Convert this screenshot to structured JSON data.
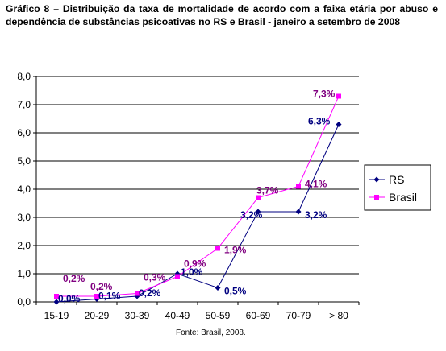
{
  "caption": "Gráfico 8 – Distribuição da taxa de mortalidade de acordo com a faixa etária por abuso e dependência de substâncias psicoativas no RS e Brasil - janeiro a setembro de 2008",
  "source": "Fonte: Brasil, 2008.",
  "chart_data": {
    "type": "line",
    "categories": [
      "15-19",
      "20-29",
      "30-39",
      "40-49",
      "50-59",
      "60-69",
      "70-79",
      "> 80"
    ],
    "ylim": [
      0,
      8
    ],
    "yticks": [
      "0,0",
      "1,0",
      "2,0",
      "3,0",
      "4,0",
      "5,0",
      "6,0",
      "7,0",
      "8,0"
    ],
    "grid": "horizontal",
    "legend_position": "right",
    "series": [
      {
        "name": "RS",
        "color": "#000080",
        "marker": "diamond",
        "values": [
          0.0,
          0.1,
          0.2,
          1.0,
          0.5,
          3.2,
          3.2,
          6.3
        ],
        "labels": [
          "0,0%",
          "0,1%",
          "0,2%",
          "1,0%",
          "0,5%",
          "3,2%",
          "3,2%",
          "6,3%"
        ]
      },
      {
        "name": "Brasil",
        "color": "#ff00ff",
        "label_color": "#800080",
        "marker": "square",
        "values": [
          0.2,
          0.2,
          0.3,
          0.9,
          1.9,
          3.7,
          4.1,
          7.3
        ],
        "labels": [
          "0,2%",
          "0,2%",
          "0,3%",
          "0,9%",
          "1,9%",
          "3,7%",
          "4,1%",
          "7,3%"
        ]
      }
    ]
  }
}
